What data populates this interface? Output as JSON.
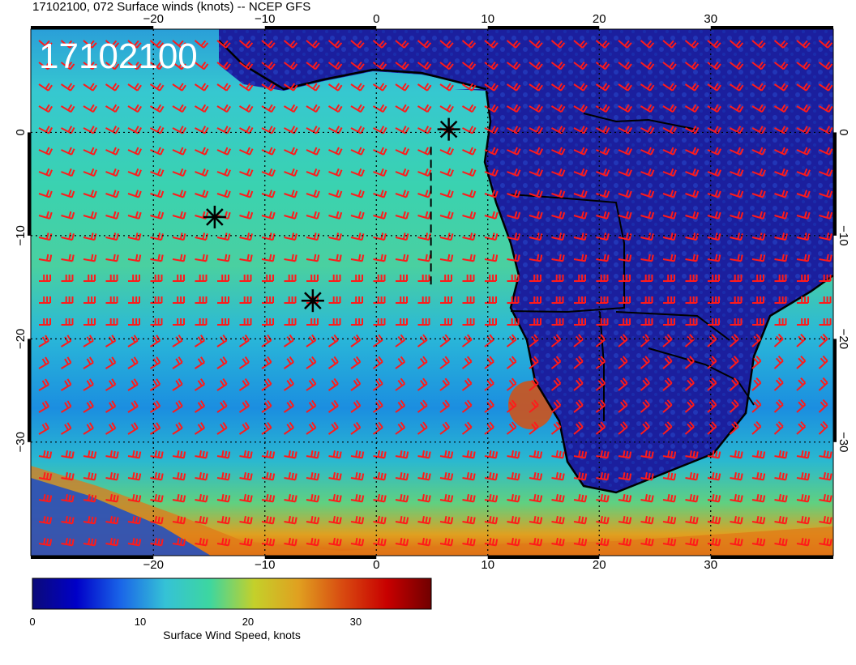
{
  "header": {
    "title": "17102100, 072 Surface winds (knots) -- NCEP GFS"
  },
  "overlay": {
    "timestamp": "17102100"
  },
  "map": {
    "lon_range": [
      -31,
      41
    ],
    "lat_range": [
      -41,
      10
    ],
    "grid_lons": [
      -20,
      -10,
      0,
      10,
      20,
      30
    ],
    "grid_lats": [
      0,
      -10,
      -20,
      -30
    ],
    "top_tick_labels": [
      "−20",
      "−10",
      "0",
      "10",
      "20",
      "30"
    ],
    "bottom_tick_labels": [
      "−20",
      "−10",
      "0",
      "10",
      "20",
      "30"
    ],
    "left_tick_labels": [
      "0",
      "−10",
      "−20",
      "−30"
    ],
    "right_tick_labels": [
      "0",
      "−10",
      "−20",
      "−30"
    ],
    "ocean_color": "#36c3c9",
    "land_color": "#1b1f9e",
    "barb_color": "#ff1a1a",
    "markers": [
      {
        "type": "asterisk",
        "lon": 6.5,
        "lat": 0.3
      },
      {
        "type": "asterisk",
        "lon": -14.5,
        "lat": -8.2
      },
      {
        "type": "asterisk",
        "lon": -5.7,
        "lat": -16.3
      }
    ],
    "dashed_line": {
      "lon": [
        4.9,
        4.9
      ],
      "lat": [
        -1.4,
        -15.2
      ]
    }
  },
  "colorbar": {
    "min": 0,
    "max": 37,
    "tick_labels": [
      "0",
      "10",
      "20",
      "30"
    ],
    "tick_values": [
      0,
      10,
      20,
      30
    ],
    "label": "Surface Wind Speed, knots",
    "colors": [
      "#0b0a78",
      "#0000c8",
      "#1a66e8",
      "#35c2d6",
      "#3dd6a0",
      "#c4d02a",
      "#e0a020",
      "#d84a10",
      "#c80000",
      "#700000"
    ]
  }
}
